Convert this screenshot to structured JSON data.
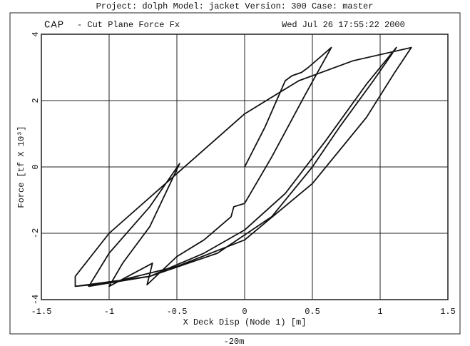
{
  "chart_data": {
    "type": "line",
    "header": "Project: dolph  Model: jacket  Version: 300  Case: master",
    "logo": "CAP",
    "title": "- Cut Plane Force Fx",
    "timestamp": "Wed Jul 26 17:55:22 2000",
    "xlabel": "X Deck Disp (Node 1) [m]",
    "ylabel": "Force [tf X 10³]",
    "footer": "-20m",
    "xlim": [
      -1.5,
      1.5
    ],
    "ylim": [
      -4,
      4
    ],
    "xticks": [
      -1.5,
      -1,
      -0.5,
      0,
      0.5,
      1,
      1.5
    ],
    "yticks": [
      -4,
      -2,
      0,
      2,
      4
    ],
    "grid": true,
    "x": [
      0,
      0.15,
      0.3,
      0.35,
      0.42,
      0.47,
      0.64,
      0.45,
      0.2,
      0,
      -0.08,
      -0.1,
      -0.3,
      -0.5,
      -0.72,
      -0.68,
      -1.0,
      -0.9,
      -0.7,
      -0.48,
      -0.7,
      -1.0,
      -1.15,
      -0.7,
      -0.3,
      0,
      0.3,
      0.6,
      0.9,
      1.12,
      0.95,
      0.7,
      0.5,
      0.2,
      -0.2,
      -0.7,
      -1.25,
      -1.25,
      -1.0,
      -0.5,
      0,
      0.4,
      0.8,
      1.23,
      1.1,
      0.9,
      0.5,
      0,
      -0.5,
      -1.0,
      -1.25
    ],
    "series": [
      {
        "name": "Fx",
        "color": "#111111",
        "values": [
          0,
          1.2,
          2.6,
          2.75,
          2.85,
          3.0,
          3.6,
          2.2,
          0.3,
          -1.1,
          -1.2,
          -1.5,
          -2.2,
          -2.7,
          -3.55,
          -2.9,
          -3.6,
          -2.9,
          -1.8,
          0.1,
          -1.2,
          -2.6,
          -3.6,
          -3.3,
          -2.6,
          -1.9,
          -0.8,
          0.8,
          2.5,
          3.6,
          2.6,
          1.2,
          0,
          -1.5,
          -2.6,
          -3.3,
          -3.6,
          -3.3,
          -2.0,
          -0.2,
          1.6,
          2.6,
          3.2,
          3.6,
          2.8,
          1.5,
          -0.5,
          -2.2,
          -3.0,
          -3.5,
          -3.6
        ]
      }
    ]
  }
}
